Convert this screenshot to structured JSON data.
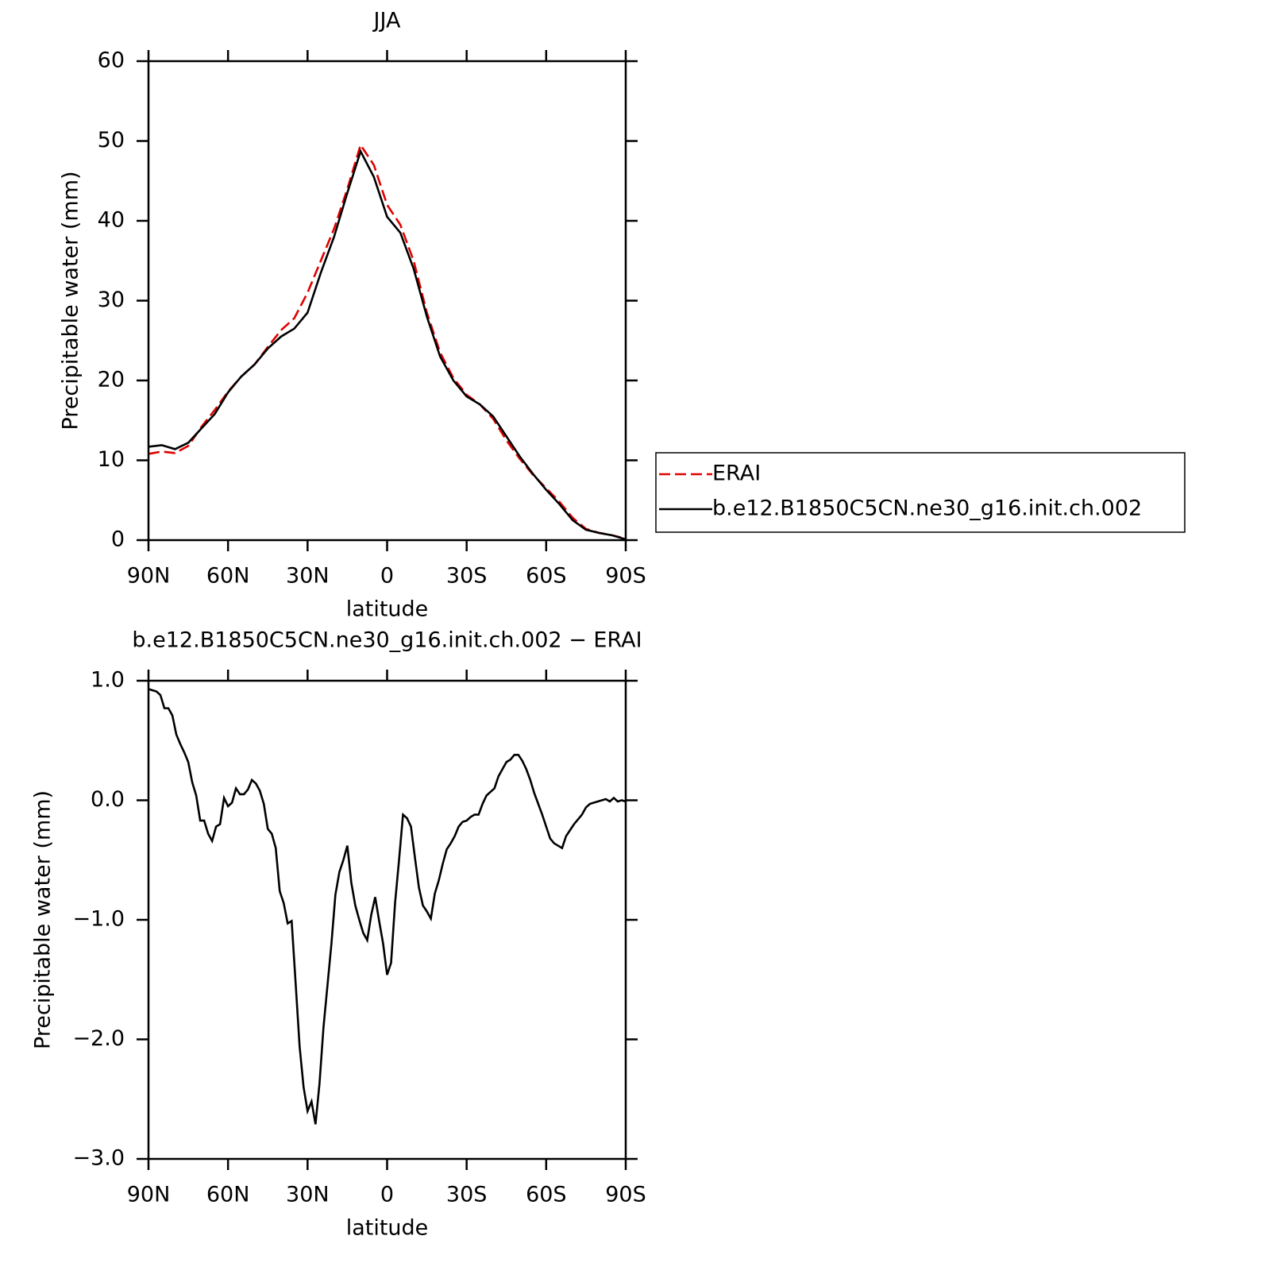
{
  "chart_data": [
    {
      "type": "line",
      "title": "JJA",
      "xlabel": "latitude",
      "ylabel": "Precipitable water (mm)",
      "x": [
        90,
        85,
        80,
        75,
        70,
        65,
        60,
        55,
        50,
        45,
        40,
        35,
        30,
        25,
        20,
        15,
        10,
        5,
        0,
        -5,
        -10,
        -15,
        -20,
        -25,
        -30,
        -35,
        -40,
        -45,
        -50,
        -55,
        -60,
        -65,
        -70,
        -75,
        -80,
        -85,
        -90
      ],
      "xlim": [
        90,
        -90
      ],
      "xticks": [
        {
          "value": 90,
          "label": "90N"
        },
        {
          "value": 60,
          "label": "60N"
        },
        {
          "value": 30,
          "label": "30N"
        },
        0,
        {
          "value": -30,
          "label": "30S"
        },
        {
          "value": -60,
          "label": "60S"
        },
        {
          "value": -90,
          "label": "90S"
        }
      ],
      "ylim": [
        0,
        60
      ],
      "yticks": [
        0,
        10,
        20,
        30,
        40,
        50,
        60
      ],
      "legend": "right",
      "series": [
        {
          "name": "ERAI",
          "color": "#e00000",
          "linestyle": "dashed",
          "values": [
            10.8,
            11.1,
            10.9,
            11.8,
            14.2,
            16.3,
            18.6,
            20.5,
            22.0,
            24.2,
            26.3,
            27.8,
            31,
            35,
            39,
            44,
            49.5,
            47,
            42,
            39.5,
            35,
            28.5,
            23.5,
            20.3,
            18.2,
            17,
            15.2,
            12.5,
            10.2,
            8.2,
            6.5,
            4.8,
            2.8,
            1.4,
            0.9,
            0.6,
            0.2
          ]
        },
        {
          "name": "b.e12.B1850C5CN.ne30_g16.init.ch.002",
          "color": "#000000",
          "linestyle": "solid",
          "values": [
            11.7,
            11.9,
            11.4,
            12.2,
            14.0,
            15.8,
            18.5,
            20.5,
            22.0,
            24.0,
            25.5,
            26.5,
            28.5,
            33.5,
            38.0,
            43.5,
            48.7,
            45.5,
            40.5,
            38.5,
            34,
            28,
            23,
            20,
            18,
            17,
            15.5,
            13,
            10.5,
            8.3,
            6.3,
            4.5,
            2.5,
            1.3,
            0.9,
            0.6,
            0.1
          ]
        }
      ]
    },
    {
      "type": "line",
      "title": "b.e12.B1850C5CN.ne30_g16.init.ch.002 − ERAI",
      "xlabel": "latitude",
      "ylabel": "Precipitable water (mm)",
      "x": [
        90,
        88.5,
        87,
        85.5,
        84,
        82.5,
        81,
        79.5,
        78,
        76.5,
        75,
        73.5,
        72,
        70.5,
        69,
        67.5,
        66,
        64.5,
        63,
        61.5,
        60,
        58.5,
        57,
        55.5,
        54,
        52.5,
        51,
        49.5,
        48,
        46.5,
        45,
        43.5,
        42,
        40.5,
        39,
        37.5,
        36,
        34.5,
        33,
        31.5,
        30,
        28.5,
        27,
        25.5,
        24,
        22.5,
        21,
        19.5,
        18,
        16.5,
        15,
        13.5,
        12,
        10.5,
        9,
        7.5,
        6,
        4.5,
        3,
        1.5,
        0,
        -1.5,
        -3,
        -4.5,
        -6,
        -7.5,
        -9,
        -10.5,
        -12,
        -13.5,
        -15,
        -16.5,
        -18,
        -19.5,
        -21,
        -22.5,
        -24,
        -25.5,
        -27,
        -28.5,
        -30,
        -31.5,
        -33,
        -34.5,
        -36,
        -37.5,
        -39,
        -40.5,
        -42,
        -43.5,
        -45,
        -46.5,
        -48,
        -49.5,
        -51,
        -52.5,
        -54,
        -55.5,
        -57,
        -58.5,
        -60,
        -61.5,
        -63,
        -64.5,
        -66,
        -67.5,
        -69,
        -70.5,
        -72,
        -73.5,
        -75,
        -76.5,
        -78,
        -79.5,
        -81,
        -82.5,
        -84,
        -85.5,
        -87,
        -88.5,
        -90
      ],
      "xlim": [
        90,
        -90
      ],
      "xticks": [
        {
          "value": 90,
          "label": "90N"
        },
        {
          "value": 60,
          "label": "60N"
        },
        {
          "value": 30,
          "label": "30N"
        },
        0,
        {
          "value": -30,
          "label": "30S"
        },
        {
          "value": -60,
          "label": "60S"
        },
        {
          "value": -90,
          "label": "90S"
        }
      ],
      "ylim": [
        -3,
        1
      ],
      "yticks": [
        {
          "value": -3,
          "label": "−3.0"
        },
        {
          "value": -2,
          "label": "−2.0"
        },
        {
          "value": -1,
          "label": "−1.0"
        },
        {
          "value": 0,
          "label": "0.0"
        },
        {
          "value": 1,
          "label": "1.0"
        }
      ],
      "series": [
        {
          "color": "#000000",
          "linestyle": "solid",
          "values": [
            0.93,
            0.92,
            0.91,
            0.88,
            0.77,
            0.77,
            0.71,
            0.55,
            0.47,
            0.4,
            0.32,
            0.15,
            0.04,
            -0.17,
            -0.17,
            -0.28,
            -0.34,
            -0.22,
            -0.2,
            0.02,
            -0.05,
            -0.02,
            0.1,
            0.05,
            0.05,
            0.09,
            0.17,
            0.14,
            0.08,
            -0.03,
            -0.24,
            -0.28,
            -0.4,
            -0.76,
            -0.86,
            -1.03,
            -1.01,
            -1.53,
            -2.06,
            -2.4,
            -2.6,
            -2.52,
            -2.71,
            -2.37,
            -1.9,
            -1.55,
            -1.2,
            -0.79,
            -0.6,
            -0.5,
            -0.38,
            -0.69,
            -0.88,
            -1.0,
            -1.11,
            -1.17,
            -0.96,
            -0.81,
            -1.01,
            -1.2,
            -1.46,
            -1.36,
            -0.86,
            -0.5,
            -0.12,
            -0.15,
            -0.22,
            -0.48,
            -0.73,
            -0.88,
            -0.93,
            -0.99,
            -0.78,
            -0.67,
            -0.53,
            -0.41,
            -0.36,
            -0.3,
            -0.22,
            -0.18,
            -0.17,
            -0.14,
            -0.12,
            -0.12,
            -0.03,
            0.04,
            0.07,
            0.1,
            0.2,
            0.26,
            0.32,
            0.34,
            0.38,
            0.38,
            0.33,
            0.26,
            0.17,
            0.06,
            -0.03,
            -0.12,
            -0.22,
            -0.32,
            -0.36,
            -0.38,
            -0.4,
            -0.3,
            -0.25,
            -0.2,
            -0.16,
            -0.12,
            -0.06,
            -0.03,
            -0.02,
            -0.01,
            0.0,
            0.01,
            -0.01,
            0.02,
            -0.01,
            0.0,
            -0.01
          ]
        }
      ]
    }
  ]
}
